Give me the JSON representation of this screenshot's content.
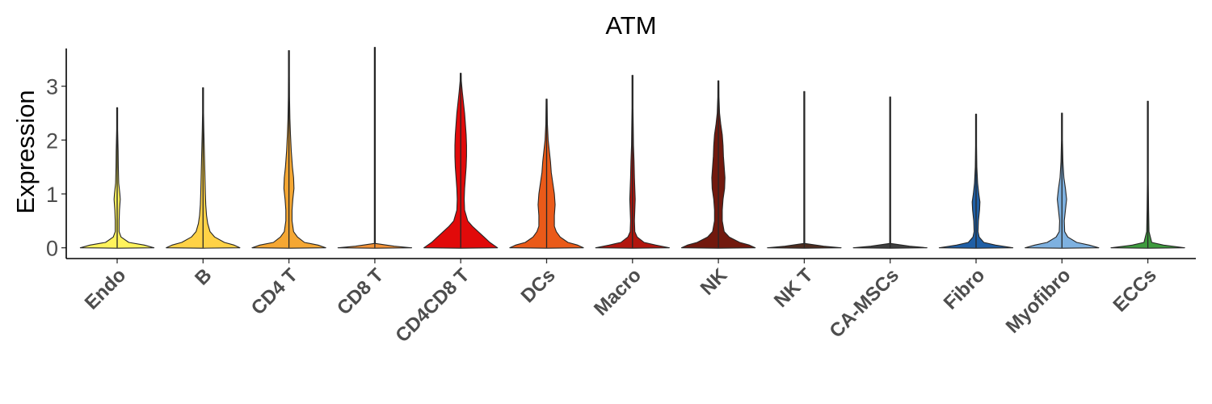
{
  "chart_data": {
    "type": "violin",
    "title": "ATM",
    "xlabel": "",
    "ylabel": "Expression",
    "ylim": [
      -0.2,
      3.7
    ],
    "yticks": [
      0,
      1,
      2,
      3
    ],
    "grid": false,
    "legend": "none",
    "categories": [
      "Endo",
      "B",
      "CD4 T",
      "CD8 T",
      "CD4CD8 T",
      "DCs",
      "Macro",
      "NK",
      "NK T",
      "CA-MSCs",
      "Fibro",
      "Myofibro",
      "ECCs"
    ],
    "series": [
      {
        "category": "Endo",
        "color": "#FFF35C",
        "max": 2.6,
        "density": [
          [
            0,
            0.95
          ],
          [
            0.05,
            0.7
          ],
          [
            0.1,
            0.3
          ],
          [
            0.2,
            0.1
          ],
          [
            0.3,
            0.05
          ],
          [
            0.5,
            0.05
          ],
          [
            0.7,
            0.06
          ],
          [
            0.9,
            0.08
          ],
          [
            1.0,
            0.07
          ],
          [
            1.2,
            0.04
          ],
          [
            1.5,
            0.03
          ],
          [
            1.8,
            0.025
          ],
          [
            2.2,
            0.01
          ],
          [
            2.6,
            0.003
          ]
        ]
      },
      {
        "category": "B",
        "color": "#FFD246",
        "max": 2.97,
        "density": [
          [
            0,
            0.95
          ],
          [
            0.05,
            0.8
          ],
          [
            0.1,
            0.55
          ],
          [
            0.2,
            0.3
          ],
          [
            0.3,
            0.18
          ],
          [
            0.45,
            0.12
          ],
          [
            0.6,
            0.09
          ],
          [
            0.8,
            0.07
          ],
          [
            1.0,
            0.06
          ],
          [
            1.3,
            0.05
          ],
          [
            1.6,
            0.04
          ],
          [
            1.9,
            0.03
          ],
          [
            2.2,
            0.02
          ],
          [
            2.5,
            0.01
          ],
          [
            2.97,
            0.003
          ]
        ]
      },
      {
        "category": "CD4 T",
        "color": "#F5A733",
        "max": 3.66,
        "density": [
          [
            0,
            0.95
          ],
          [
            0.05,
            0.75
          ],
          [
            0.1,
            0.4
          ],
          [
            0.2,
            0.22
          ],
          [
            0.3,
            0.12
          ],
          [
            0.5,
            0.08
          ],
          [
            0.7,
            0.08
          ],
          [
            0.9,
            0.1
          ],
          [
            1.1,
            0.13
          ],
          [
            1.3,
            0.12
          ],
          [
            1.5,
            0.09
          ],
          [
            1.8,
            0.06
          ],
          [
            2.1,
            0.04
          ],
          [
            2.4,
            0.025
          ],
          [
            2.8,
            0.015
          ],
          [
            3.2,
            0.008
          ],
          [
            3.66,
            0.002
          ]
        ]
      },
      {
        "category": "CD8 T",
        "color": "#F39237",
        "max": 3.72,
        "density": [
          [
            0,
            0.95
          ],
          [
            0.03,
            0.5
          ],
          [
            0.08,
            0.01
          ],
          [
            3.72,
            0.005
          ]
        ]
      },
      {
        "category": "CD4CD8 T",
        "color": "#E10A0A",
        "max": 3.24,
        "density": [
          [
            0,
            0.95
          ],
          [
            0.05,
            0.85
          ],
          [
            0.1,
            0.75
          ],
          [
            0.2,
            0.6
          ],
          [
            0.3,
            0.45
          ],
          [
            0.4,
            0.3
          ],
          [
            0.5,
            0.18
          ],
          [
            0.7,
            0.1
          ],
          [
            0.9,
            0.09
          ],
          [
            1.1,
            0.1
          ],
          [
            1.3,
            0.12
          ],
          [
            1.5,
            0.14
          ],
          [
            1.7,
            0.15
          ],
          [
            1.9,
            0.15
          ],
          [
            2.1,
            0.14
          ],
          [
            2.3,
            0.12
          ],
          [
            2.5,
            0.1
          ],
          [
            2.7,
            0.07
          ],
          [
            2.9,
            0.04
          ],
          [
            3.1,
            0.015
          ],
          [
            3.24,
            0.003
          ]
        ]
      },
      {
        "category": "DCs",
        "color": "#EA5A19",
        "max": 2.76,
        "density": [
          [
            0,
            0.95
          ],
          [
            0.05,
            0.8
          ],
          [
            0.1,
            0.55
          ],
          [
            0.2,
            0.35
          ],
          [
            0.3,
            0.25
          ],
          [
            0.4,
            0.2
          ],
          [
            0.6,
            0.2
          ],
          [
            0.8,
            0.22
          ],
          [
            1.0,
            0.2
          ],
          [
            1.2,
            0.16
          ],
          [
            1.4,
            0.12
          ],
          [
            1.6,
            0.1
          ],
          [
            1.8,
            0.07
          ],
          [
            2.0,
            0.04
          ],
          [
            2.3,
            0.02
          ],
          [
            2.76,
            0.003
          ]
        ]
      },
      {
        "category": "Macro",
        "color": "#B2160E",
        "max": 3.2,
        "density": [
          [
            0,
            0.95
          ],
          [
            0.05,
            0.6
          ],
          [
            0.1,
            0.3
          ],
          [
            0.2,
            0.12
          ],
          [
            0.3,
            0.06
          ],
          [
            0.5,
            0.05
          ],
          [
            0.7,
            0.06
          ],
          [
            0.9,
            0.07
          ],
          [
            1.1,
            0.06
          ],
          [
            1.3,
            0.05
          ],
          [
            1.6,
            0.04
          ],
          [
            1.9,
            0.025
          ],
          [
            2.2,
            0.02
          ],
          [
            2.6,
            0.01
          ],
          [
            3.2,
            0.003
          ]
        ]
      },
      {
        "category": "NK",
        "color": "#72190E",
        "max": 3.1,
        "density": [
          [
            0,
            0.95
          ],
          [
            0.05,
            0.8
          ],
          [
            0.1,
            0.55
          ],
          [
            0.2,
            0.28
          ],
          [
            0.3,
            0.15
          ],
          [
            0.5,
            0.1
          ],
          [
            0.7,
            0.1
          ],
          [
            0.9,
            0.12
          ],
          [
            1.1,
            0.16
          ],
          [
            1.3,
            0.17
          ],
          [
            1.5,
            0.15
          ],
          [
            1.7,
            0.13
          ],
          [
            1.9,
            0.12
          ],
          [
            2.1,
            0.1
          ],
          [
            2.3,
            0.06
          ],
          [
            2.5,
            0.03
          ],
          [
            2.8,
            0.015
          ],
          [
            3.1,
            0.003
          ]
        ]
      },
      {
        "category": "NK T",
        "color": "#4E2C1F",
        "max": 2.9,
        "density": [
          [
            0,
            0.95
          ],
          [
            0.03,
            0.5
          ],
          [
            0.08,
            0.01
          ],
          [
            1.5,
            0.012
          ],
          [
            2.0,
            0.012
          ],
          [
            2.9,
            0.004
          ]
        ]
      },
      {
        "category": "CA-MSCs",
        "color": "#3F3F3F",
        "max": 2.8,
        "density": [
          [
            0,
            0.95
          ],
          [
            0.03,
            0.5
          ],
          [
            0.08,
            0.01
          ],
          [
            2.8,
            0.004
          ]
        ]
      },
      {
        "category": "Fibro",
        "color": "#1F5FA6",
        "max": 2.48,
        "density": [
          [
            0,
            0.95
          ],
          [
            0.05,
            0.5
          ],
          [
            0.1,
            0.2
          ],
          [
            0.2,
            0.08
          ],
          [
            0.3,
            0.05
          ],
          [
            0.5,
            0.06
          ],
          [
            0.7,
            0.09
          ],
          [
            0.85,
            0.1
          ],
          [
            1.0,
            0.07
          ],
          [
            1.2,
            0.04
          ],
          [
            1.5,
            0.02
          ],
          [
            1.9,
            0.012
          ],
          [
            2.48,
            0.003
          ]
        ]
      },
      {
        "category": "Myofibro",
        "color": "#7EB1E0",
        "max": 2.5,
        "density": [
          [
            0,
            0.95
          ],
          [
            0.05,
            0.7
          ],
          [
            0.1,
            0.38
          ],
          [
            0.2,
            0.15
          ],
          [
            0.3,
            0.07
          ],
          [
            0.5,
            0.06
          ],
          [
            0.7,
            0.09
          ],
          [
            0.9,
            0.12
          ],
          [
            1.1,
            0.09
          ],
          [
            1.3,
            0.05
          ],
          [
            1.6,
            0.025
          ],
          [
            2.0,
            0.012
          ],
          [
            2.5,
            0.003
          ]
        ]
      },
      {
        "category": "ECCs",
        "color": "#3E9B3E",
        "max": 2.72,
        "density": [
          [
            0,
            0.95
          ],
          [
            0.05,
            0.4
          ],
          [
            0.1,
            0.1
          ],
          [
            0.3,
            0.03
          ],
          [
            0.7,
            0.02
          ],
          [
            1.2,
            0.012
          ],
          [
            2.0,
            0.008
          ],
          [
            2.72,
            0.003
          ]
        ]
      }
    ]
  }
}
